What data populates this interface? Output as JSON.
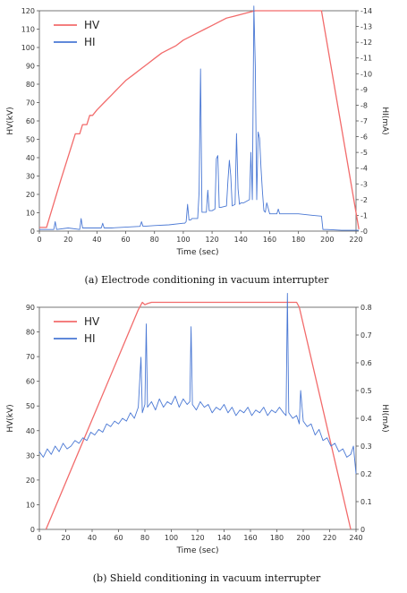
{
  "chart_data": [
    {
      "type": "line",
      "caption": "(a) Electrode conditioning in vacuum interrupter",
      "xlabel": "Time (sec)",
      "ylabel": "HV(kV)",
      "y2label": "HI(mA)",
      "xlim": [
        0,
        220
      ],
      "ylim": [
        0,
        120
      ],
      "y2lim": [
        0,
        14
      ],
      "xticks": [
        0,
        20,
        40,
        60,
        80,
        100,
        120,
        140,
        160,
        180,
        200,
        220
      ],
      "yticks": [
        0,
        10,
        20,
        30,
        40,
        50,
        60,
        70,
        80,
        90,
        100,
        110,
        120
      ],
      "y2ticks": [
        0,
        1,
        2,
        3,
        4,
        5,
        6,
        7,
        8,
        9,
        10,
        11,
        12,
        13,
        14
      ],
      "legend_position": "top-left",
      "series": [
        {
          "name": "HV",
          "color": "#f26b6b",
          "axis": "left",
          "x": [
            0,
            5,
            15,
            25,
            28,
            30,
            33,
            35,
            37,
            40,
            45,
            50,
            55,
            60,
            65,
            70,
            75,
            80,
            85,
            90,
            95,
            100,
            105,
            110,
            115,
            120,
            125,
            130,
            135,
            140,
            145,
            150,
            155,
            160,
            165,
            170,
            175,
            180,
            185,
            190,
            196,
            222
          ],
          "values": [
            2,
            2,
            28,
            53,
            53,
            58,
            58,
            63,
            63,
            66,
            70,
            74,
            78,
            82,
            85,
            88,
            91,
            94,
            97,
            99,
            101,
            104,
            106,
            108,
            110,
            112,
            114,
            116,
            117,
            118,
            119,
            120,
            120,
            120,
            120,
            120,
            120,
            120,
            120,
            120,
            120,
            1
          ]
        },
        {
          "name": "HI",
          "color": "#4a78d4",
          "axis": "right",
          "x": [
            0,
            10,
            11,
            12,
            20,
            28,
            29,
            30,
            40,
            43,
            44,
            45,
            50,
            60,
            70,
            71,
            72,
            80,
            90,
            100,
            101,
            102,
            103,
            104,
            105,
            106,
            110,
            111,
            112,
            113,
            114,
            116,
            117,
            118,
            119,
            120,
            122,
            123,
            124,
            125,
            126,
            130,
            131,
            132,
            133,
            134,
            136,
            137,
            138,
            139,
            140,
            142,
            144,
            146,
            147,
            148,
            149,
            150,
            151,
            152,
            153,
            154,
            155,
            156,
            157,
            158,
            160,
            165,
            166,
            167,
            170,
            180,
            190,
            196,
            197,
            200,
            210,
            220,
            222
          ],
          "values": [
            0.1,
            0.1,
            0.6,
            0.1,
            0.2,
            0.1,
            0.8,
            0.2,
            0.2,
            0.2,
            0.5,
            0.2,
            0.2,
            0.25,
            0.3,
            0.6,
            0.3,
            0.35,
            0.4,
            0.5,
            0.5,
            0.6,
            1.7,
            0.7,
            0.7,
            0.8,
            0.8,
            2.5,
            10.3,
            1.2,
            1.2,
            1.2,
            2.6,
            1.3,
            1.3,
            1.3,
            1.4,
            4.6,
            4.8,
            1.5,
            1.5,
            1.6,
            3.2,
            4.5,
            3.5,
            1.6,
            1.7,
            6.2,
            2.7,
            1.7,
            1.8,
            1.8,
            1.9,
            2.0,
            5.0,
            2.0,
            14.3,
            10.5,
            2.0,
            6.3,
            5.9,
            4.0,
            2.5,
            1.3,
            1.2,
            1.8,
            1.1,
            1.1,
            1.4,
            1.1,
            1.1,
            1.1,
            1.0,
            0.95,
            0.1,
            0.1,
            0.05,
            0.05,
            0.05
          ]
        }
      ]
    },
    {
      "type": "line",
      "caption": "(b) Shield conditioning in vacuum interrupter",
      "xlabel": "Time (sec)",
      "ylabel": "HV(kV)",
      "y2label": "HI(mA)",
      "xlim": [
        0,
        240
      ],
      "ylim": [
        0,
        90
      ],
      "y2lim": [
        0,
        0.8
      ],
      "xticks": [
        0,
        20,
        40,
        60,
        80,
        100,
        120,
        140,
        160,
        180,
        200,
        220,
        240
      ],
      "yticks": [
        0,
        10,
        20,
        30,
        40,
        50,
        60,
        70,
        80,
        90
      ],
      "y2ticks": [
        0,
        0.1,
        0.2,
        0.3,
        0.4,
        0.5,
        0.6,
        0.7,
        0.8
      ],
      "legend_position": "top-left",
      "series": [
        {
          "name": "HV",
          "color": "#f26b6b",
          "axis": "left",
          "x": [
            5,
            75,
            78,
            80,
            82,
            85,
            100,
            150,
            195,
            197,
            236
          ],
          "values": [
            0,
            89,
            92,
            91,
            91.5,
            92,
            92,
            92,
            92,
            90,
            0
          ]
        },
        {
          "name": "HI",
          "color": "#4a78d4",
          "axis": "right",
          "x": [
            0,
            3,
            6,
            9,
            12,
            15,
            18,
            21,
            24,
            27,
            30,
            33,
            36,
            39,
            42,
            45,
            48,
            51,
            54,
            57,
            60,
            63,
            66,
            69,
            72,
            75,
            77,
            78,
            80,
            81,
            82,
            85,
            88,
            91,
            94,
            97,
            100,
            103,
            106,
            109,
            112,
            114,
            115,
            116,
            119,
            122,
            125,
            128,
            131,
            134,
            137,
            140,
            143,
            146,
            149,
            152,
            155,
            158,
            161,
            164,
            167,
            170,
            173,
            176,
            179,
            182,
            185,
            187,
            188,
            189,
            192,
            195,
            197,
            198,
            200,
            203,
            206,
            209,
            212,
            215,
            218,
            221,
            224,
            227,
            230,
            233,
            236,
            238,
            240
          ],
          "values": [
            0.28,
            0.26,
            0.29,
            0.27,
            0.3,
            0.28,
            0.31,
            0.29,
            0.3,
            0.32,
            0.31,
            0.33,
            0.32,
            0.35,
            0.34,
            0.36,
            0.35,
            0.38,
            0.37,
            0.39,
            0.38,
            0.4,
            0.39,
            0.42,
            0.4,
            0.44,
            0.62,
            0.42,
            0.45,
            0.74,
            0.44,
            0.46,
            0.43,
            0.47,
            0.44,
            0.46,
            0.45,
            0.48,
            0.44,
            0.47,
            0.45,
            0.46,
            0.73,
            0.45,
            0.43,
            0.46,
            0.44,
            0.45,
            0.42,
            0.44,
            0.43,
            0.45,
            0.42,
            0.44,
            0.41,
            0.43,
            0.42,
            0.44,
            0.41,
            0.43,
            0.42,
            0.44,
            0.41,
            0.43,
            0.42,
            0.44,
            0.42,
            0.41,
            0.85,
            0.42,
            0.4,
            0.41,
            0.38,
            0.5,
            0.39,
            0.37,
            0.38,
            0.34,
            0.36,
            0.32,
            0.33,
            0.3,
            0.31,
            0.28,
            0.29,
            0.26,
            0.27,
            0.3,
            0.2
          ]
        }
      ]
    }
  ]
}
